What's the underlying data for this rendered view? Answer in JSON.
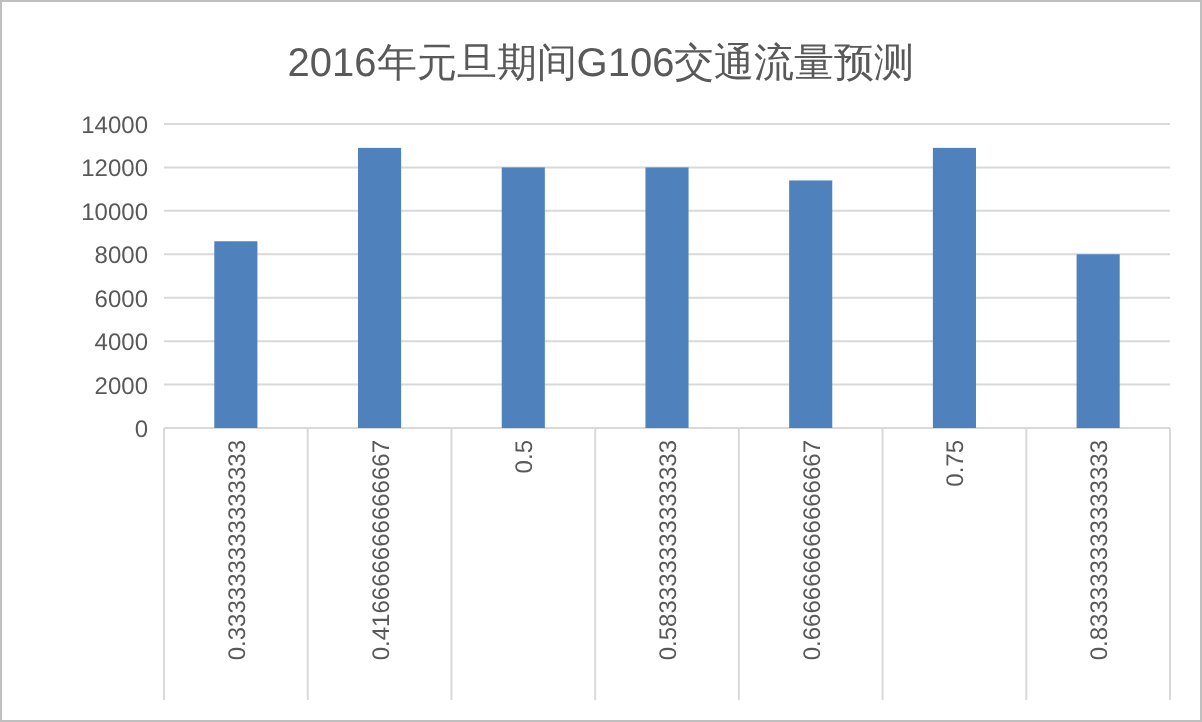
{
  "chart_data": {
    "type": "bar",
    "title": "2016年元旦期间G106交通流量预测",
    "categories": [
      "0.333333333333333",
      "0.416666666666667",
      "0.5",
      "0.583333333333333",
      "0.666666666666667",
      "0.75",
      "0.833333333333333"
    ],
    "values": [
      8600,
      12900,
      12000,
      12000,
      11400,
      12900,
      8000
    ],
    "color": "#4f81bd",
    "ylim": [
      0,
      14000
    ],
    "yticks": [
      0,
      2000,
      4000,
      6000,
      8000,
      10000,
      12000,
      14000
    ],
    "grid": "y"
  }
}
